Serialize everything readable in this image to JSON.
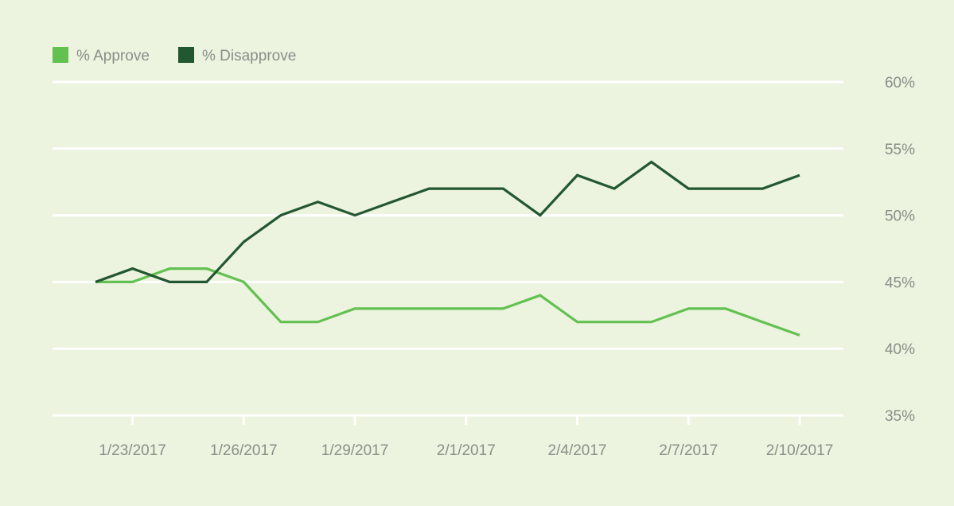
{
  "colors": {
    "background": "#ECF3DE",
    "grid": "#FFFFFF",
    "approve": "#62C151",
    "disapprove": "#225731",
    "tick_text": "#8A8F8A"
  },
  "legend": [
    {
      "label": "% Approve",
      "color_key": "approve"
    },
    {
      "label": "% Disapprove",
      "color_key": "disapprove"
    }
  ],
  "chart_data": {
    "type": "line",
    "title": "",
    "xlabel": "",
    "ylabel": "",
    "legend_position": "top-left",
    "grid": true,
    "x": [
      "1/22/2017",
      "1/23/2017",
      "1/24/2017",
      "1/25/2017",
      "1/26/2017",
      "1/27/2017",
      "1/28/2017",
      "1/29/2017",
      "1/30/2017",
      "1/31/2017",
      "2/1/2017",
      "2/2/2017",
      "2/3/2017",
      "2/4/2017",
      "2/5/2017",
      "2/6/2017",
      "2/7/2017",
      "2/8/2017",
      "2/9/2017",
      "2/10/2017"
    ],
    "x_tick_labels": [
      "1/23/2017",
      "1/26/2017",
      "1/29/2017",
      "2/1/2017",
      "2/4/2017",
      "2/7/2017",
      "2/10/2017"
    ],
    "y_tick_labels": [
      "60%",
      "55%",
      "50%",
      "45%",
      "40%",
      "35%"
    ],
    "y_ticks": [
      60,
      55,
      50,
      45,
      40,
      35
    ],
    "ylim": [
      35,
      60
    ],
    "series": [
      {
        "name": "% Approve",
        "color_key": "approve",
        "values": [
          45,
          45,
          46,
          46,
          45,
          42,
          42,
          43,
          43,
          43,
          43,
          43,
          44,
          42,
          42,
          42,
          43,
          43,
          42,
          41
        ]
      },
      {
        "name": "% Disapprove",
        "color_key": "disapprove",
        "values": [
          45,
          46,
          45,
          45,
          48,
          50,
          51,
          50,
          51,
          52,
          52,
          52,
          50,
          53,
          52,
          54,
          52,
          52,
          52,
          53
        ]
      }
    ]
  }
}
